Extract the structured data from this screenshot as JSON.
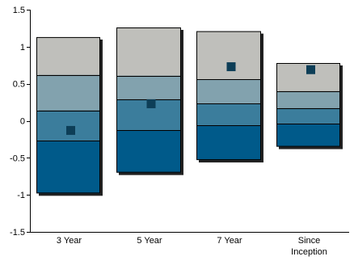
{
  "chart_data": {
    "type": "bar",
    "subtype": "floating-stacked-range-with-marker",
    "title": "",
    "xlabel": "",
    "ylabel": "",
    "ylim": [
      -1.5,
      1.5
    ],
    "yticks": [
      "1.5",
      "1",
      "0.5",
      "0",
      "-0.5",
      "-1",
      "-1.5"
    ],
    "ytick_values": [
      1.5,
      1,
      0.5,
      0,
      -0.5,
      -1,
      -1.5
    ],
    "grid": false,
    "legend": "none",
    "categories": [
      "3 Year",
      "5 Year",
      "7 Year",
      "Since Inception"
    ],
    "category_lines": [
      [
        "3 Year"
      ],
      [
        "5 Year"
      ],
      [
        "7 Year"
      ],
      [
        "Since",
        "Inception"
      ]
    ],
    "bands": [
      {
        "bottom": -0.98,
        "b1": -0.27,
        "b2": 0.14,
        "b3": 0.62,
        "top": 1.13
      },
      {
        "bottom": -0.7,
        "b1": -0.13,
        "b2": 0.29,
        "b3": 0.61,
        "top": 1.26
      },
      {
        "bottom": -0.53,
        "b1": -0.06,
        "b2": 0.23,
        "b3": 0.56,
        "top": 1.21
      },
      {
        "bottom": -0.35,
        "b1": -0.04,
        "b2": 0.17,
        "b3": 0.4,
        "top": 0.78
      }
    ],
    "markers": [
      -0.13,
      0.23,
      0.73,
      0.69
    ],
    "colors": {
      "band_bottom": "#005a8a",
      "band_lower_mid": "#3b7d9c",
      "band_upper_mid": "#82a2ae",
      "band_top": "#bfbfbb",
      "marker": "#0d3e57",
      "axis": "#000000"
    }
  }
}
